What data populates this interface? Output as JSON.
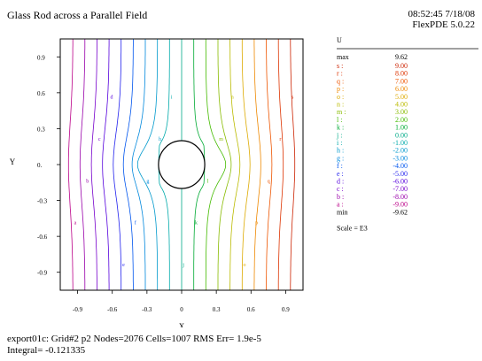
{
  "header": {
    "title": "Glass Rod across a Parallel Field",
    "timestamp": "08:52:45 7/18/08",
    "version": "FlexPDE 5.0.22"
  },
  "footer": {
    "line1": "export01c:  Grid#2  p2  Nodes=2076 Cells=1007 RMS Err= 1.9e-5",
    "line2": "Integral= -0.121335"
  },
  "chart_data": {
    "type": "contour",
    "variable": "U",
    "xlabel": "X",
    "ylabel": "Y",
    "xlim": [
      -1.05,
      1.05
    ],
    "ylim": [
      -1.05,
      1.05
    ],
    "x_ticks": [
      -0.9,
      -0.6,
      -0.3,
      0,
      0.3,
      0.6,
      0.9
    ],
    "x_tick_labels": [
      "-0.9",
      "-0.6",
      "-0.3",
      "0",
      "0.3",
      "0.6",
      "0.9"
    ],
    "y_ticks": [
      0.9,
      0.6,
      0.3,
      0,
      -0.3,
      -0.6,
      -0.9
    ],
    "y_tick_labels": [
      "0.9",
      "0.6",
      "0.3",
      "0.",
      "-0.3",
      "-0.6",
      "-0.9"
    ],
    "rod_radius": 0.2,
    "max": "9.62",
    "min": "-9.62",
    "scale": "Scale = E3",
    "levels": [
      {
        "key": "s",
        "value": "9.00",
        "color": "#cc2200"
      },
      {
        "key": "r",
        "value": "8.00",
        "color": "#dd3300"
      },
      {
        "key": "q",
        "value": "7.00",
        "color": "#ee5500"
      },
      {
        "key": "p",
        "value": "6.00",
        "color": "#ee8800"
      },
      {
        "key": "o",
        "value": "5.00",
        "color": "#ddaa00"
      },
      {
        "key": "n",
        "value": "4.00",
        "color": "#bbbb00"
      },
      {
        "key": "m",
        "value": "3.00",
        "color": "#88bb00"
      },
      {
        "key": "l",
        "value": "2.00",
        "color": "#44bb00"
      },
      {
        "key": "k",
        "value": "1.00",
        "color": "#00aa33"
      },
      {
        "key": "j",
        "value": "0.00",
        "color": "#00aa88"
      },
      {
        "key": "i",
        "value": "-1.00",
        "color": "#00aaaa"
      },
      {
        "key": "h",
        "value": "-2.00",
        "color": "#0099cc"
      },
      {
        "key": "g",
        "value": "-3.00",
        "color": "#0088dd"
      },
      {
        "key": "f",
        "value": "-4.00",
        "color": "#0055ee"
      },
      {
        "key": "e",
        "value": "-5.00",
        "color": "#2222ee"
      },
      {
        "key": "d",
        "value": "-6.00",
        "color": "#5500dd"
      },
      {
        "key": "c",
        "value": "-7.00",
        "color": "#7700cc"
      },
      {
        "key": "b",
        "value": "-8.00",
        "color": "#9900aa"
      },
      {
        "key": "a",
        "value": "-9.00",
        "color": "#bb0088"
      }
    ]
  }
}
